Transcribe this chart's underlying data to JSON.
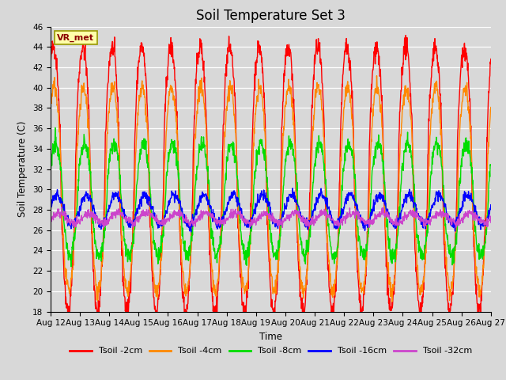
{
  "title": "Soil Temperature Set 3",
  "xlabel": "Time",
  "ylabel": "Soil Temperature (C)",
  "ylim": [
    18,
    46
  ],
  "yticks": [
    18,
    20,
    22,
    24,
    26,
    28,
    30,
    32,
    34,
    36,
    38,
    40,
    42,
    44,
    46
  ],
  "bg_color": "#d8d8d8",
  "series": [
    {
      "label": "Tsoil -2cm",
      "color": "#ff0000"
    },
    {
      "label": "Tsoil -4cm",
      "color": "#ff8800"
    },
    {
      "label": "Tsoil -8cm",
      "color": "#00dd00"
    },
    {
      "label": "Tsoil -16cm",
      "color": "#0000ff"
    },
    {
      "label": "Tsoil -32cm",
      "color": "#cc44cc"
    }
  ],
  "x_tick_labels": [
    "Aug 12",
    "Aug 13",
    "Aug 14",
    "Aug 15",
    "Aug 16",
    "Aug 17",
    "Aug 18",
    "Aug 19",
    "Aug 20",
    "Aug 21",
    "Aug 22",
    "Aug 23",
    "Aug 24",
    "Aug 25",
    "Aug 26",
    "Aug 27"
  ],
  "vr_met_label": "VR_met",
  "legend_fontsize": 8,
  "title_fontsize": 12,
  "tick_fontsize": 7.5
}
